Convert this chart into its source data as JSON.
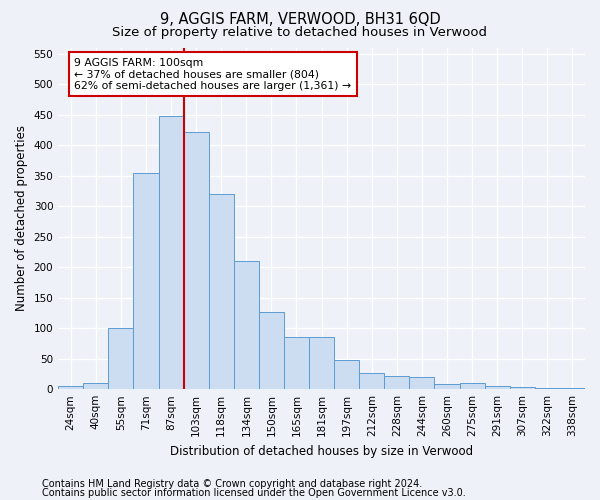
{
  "title": "9, AGGIS FARM, VERWOOD, BH31 6QD",
  "subtitle": "Size of property relative to detached houses in Verwood",
  "xlabel": "Distribution of detached houses by size in Verwood",
  "ylabel": "Number of detached properties",
  "categories": [
    "24sqm",
    "40sqm",
    "55sqm",
    "71sqm",
    "87sqm",
    "103sqm",
    "118sqm",
    "134sqm",
    "150sqm",
    "165sqm",
    "181sqm",
    "197sqm",
    "212sqm",
    "228sqm",
    "244sqm",
    "260sqm",
    "275sqm",
    "291sqm",
    "307sqm",
    "322sqm",
    "338sqm"
  ],
  "bar_heights": [
    5,
    10,
    100,
    355,
    447,
    422,
    320,
    210,
    127,
    85,
    85,
    48,
    27,
    22,
    20,
    8,
    10,
    5,
    4,
    2,
    2
  ],
  "bar_color": "#ccddf2",
  "bar_edge_color": "#5b9bd5",
  "vline_x_index": 5,
  "vline_color": "#cc0000",
  "annotation_text": "9 AGGIS FARM: 100sqm\n← 37% of detached houses are smaller (804)\n62% of semi-detached houses are larger (1,361) →",
  "annotation_box_color": "#ffffff",
  "annotation_box_edge": "#cc0000",
  "ylim": [
    0,
    560
  ],
  "yticks": [
    0,
    50,
    100,
    150,
    200,
    250,
    300,
    350,
    400,
    450,
    500,
    550
  ],
  "footer1": "Contains HM Land Registry data © Crown copyright and database right 2024.",
  "footer2": "Contains public sector information licensed under the Open Government Licence v3.0.",
  "bg_color": "#eef2f8",
  "plot_bg_color": "#eef2f8",
  "grid_color": "#ffffff",
  "title_fontsize": 10.5,
  "subtitle_fontsize": 9.5,
  "axis_label_fontsize": 8.5,
  "tick_fontsize": 7.5,
  "annotation_fontsize": 7.8,
  "footer_fontsize": 7.0
}
